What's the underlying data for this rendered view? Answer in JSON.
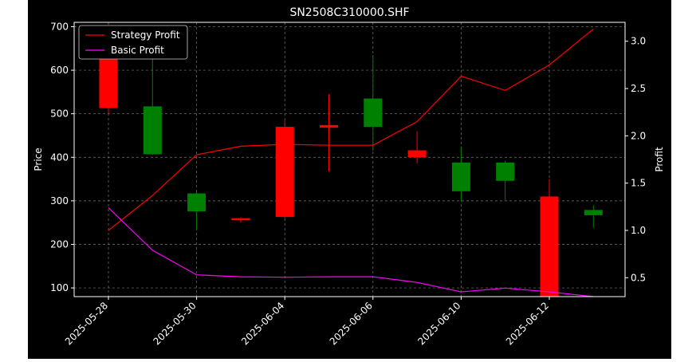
{
  "chart_data": {
    "type": "candlestick",
    "title": "SN2508C310000.SHF",
    "ylabel_left": "Price",
    "ylabel_right": "Profit",
    "ylim_left": [
      80,
      710
    ],
    "ylim_right": [
      0.3,
      3.2
    ],
    "yticks_left": [
      "100",
      "200",
      "300",
      "400",
      "500",
      "600",
      "700"
    ],
    "yticks_right": [
      "0.5",
      "1.0",
      "1.5",
      "2.0",
      "2.5",
      "3.0"
    ],
    "xtick_labels": [
      "2025-05-28",
      "2025-05-30",
      "2025-06-04",
      "2025-06-06",
      "2025-06-10",
      "2025-06-12"
    ],
    "grid": true,
    "legend_position": "top-left",
    "background": "#000000",
    "up_color": "#008000",
    "down_color": "#ff0000",
    "candles": [
      {
        "open": 625,
        "close": 513,
        "high": 630,
        "low": 500
      },
      {
        "open": 407,
        "close": 517,
        "high": 630,
        "low": 405
      },
      {
        "open": 276,
        "close": 317,
        "high": 320,
        "low": 232
      },
      {
        "open": 260,
        "close": 257,
        "high": 262,
        "low": 250
      },
      {
        "open": 470,
        "close": 263,
        "high": 485,
        "low": 260
      },
      {
        "open": 474,
        "close": 468,
        "high": 545,
        "low": 367
      },
      {
        "open": 470,
        "close": 535,
        "high": 635,
        "low": 415
      },
      {
        "open": 416,
        "close": 400,
        "high": 460,
        "low": 386
      },
      {
        "open": 322,
        "close": 388,
        "high": 425,
        "low": 298
      },
      {
        "open": 346,
        "close": 388,
        "high": 392,
        "low": 302
      },
      {
        "open": 310,
        "close": 80,
        "high": 350,
        "low": 80
      },
      {
        "open": 267,
        "close": 279,
        "high": 290,
        "low": 238
      }
    ],
    "series": [
      {
        "name": "Strategy Profit",
        "color": "#ff0000",
        "values": [
          1.0,
          1.37,
          1.8,
          1.89,
          1.91,
          1.9,
          1.9,
          2.15,
          2.63,
          2.48,
          2.75,
          3.13
        ]
      },
      {
        "name": "Basic Profit",
        "color": "#ff00ff",
        "values": [
          1.24,
          0.79,
          0.53,
          0.51,
          0.505,
          0.51,
          0.51,
          0.45,
          0.35,
          0.39,
          0.35,
          0.3
        ]
      }
    ]
  }
}
